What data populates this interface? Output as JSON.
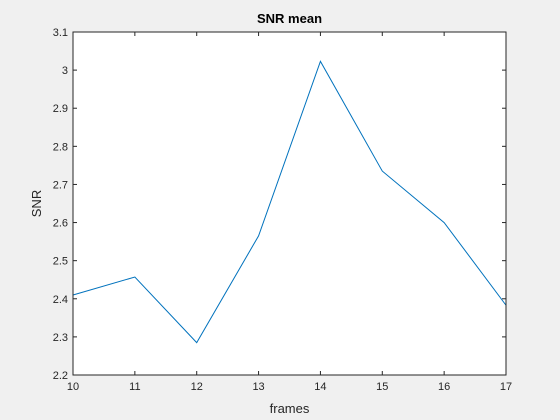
{
  "window": {
    "background": "#f0f0f0"
  },
  "chart_data": {
    "type": "line",
    "title": "SNR mean",
    "xlabel": "frames",
    "ylabel": "SNR",
    "xlim": [
      10,
      17
    ],
    "ylim": [
      2.2,
      3.1
    ],
    "xticks": [
      "10",
      "11",
      "12",
      "13",
      "14",
      "15",
      "16",
      "17"
    ],
    "yticks": [
      "2.2",
      "2.3",
      "2.4",
      "2.5",
      "2.6",
      "2.7",
      "2.8",
      "2.9",
      "3",
      "3.1"
    ],
    "grid": false,
    "series": [
      {
        "color": "#0072bd",
        "x": [
          10,
          11,
          12,
          13,
          14,
          15,
          16,
          17
        ],
        "y": [
          2.41,
          2.457,
          2.285,
          2.565,
          3.023,
          2.735,
          2.6,
          2.383
        ]
      }
    ]
  }
}
